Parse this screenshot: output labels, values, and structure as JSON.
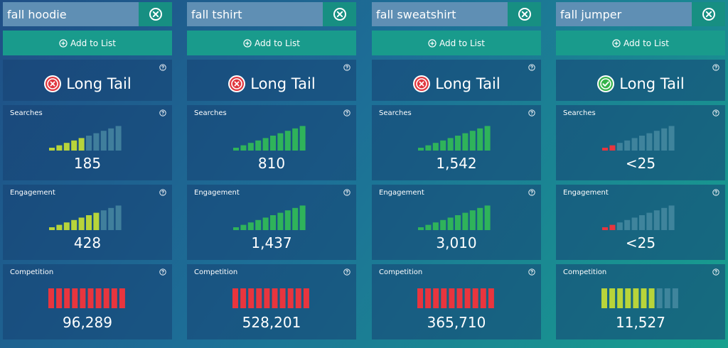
{
  "add_label": "Add to List",
  "labels": {
    "searches": "Searches",
    "engagement": "Engagement",
    "competition": "Competition"
  },
  "colors": {
    "bar_inactive": "#4d8fa6",
    "bar_yellow": "#b8d43a",
    "bar_green": "#2fb35a",
    "bar_red": "#e8353e",
    "status_bad": "#e0363e",
    "status_good": "#35b34a"
  },
  "columns": [
    {
      "keyword": "fall hoodie",
      "status": {
        "text": "Long Tail",
        "icon": "x-circle-icon",
        "ok": false
      },
      "searches": {
        "value": "185",
        "level": 5,
        "total": 10,
        "color": "bar_yellow"
      },
      "engagement": {
        "value": "428",
        "level": 7,
        "total": 10,
        "color": "bar_yellow"
      },
      "competition": {
        "value": "96,289",
        "level": 10,
        "total": 10,
        "color": "bar_red"
      }
    },
    {
      "keyword": "fall tshirt",
      "status": {
        "text": "Long Tail",
        "icon": "x-circle-icon",
        "ok": false
      },
      "searches": {
        "value": "810",
        "level": 10,
        "total": 10,
        "color": "bar_green"
      },
      "engagement": {
        "value": "1,437",
        "level": 10,
        "total": 10,
        "color": "bar_green"
      },
      "competition": {
        "value": "528,201",
        "level": 10,
        "total": 10,
        "color": "bar_red"
      }
    },
    {
      "keyword": "fall sweatshirt",
      "status": {
        "text": "Long Tail",
        "icon": "x-circle-icon",
        "ok": false
      },
      "searches": {
        "value": "1,542",
        "level": 10,
        "total": 10,
        "color": "bar_green"
      },
      "engagement": {
        "value": "3,010",
        "level": 10,
        "total": 10,
        "color": "bar_green"
      },
      "competition": {
        "value": "365,710",
        "level": 10,
        "total": 10,
        "color": "bar_red"
      }
    },
    {
      "keyword": "fall jumper",
      "status": {
        "text": "Long Tail",
        "icon": "check-circle-icon",
        "ok": true
      },
      "searches": {
        "value": "<25",
        "level": 2,
        "total": 10,
        "color": "bar_red"
      },
      "engagement": {
        "value": "<25",
        "level": 2,
        "total": 10,
        "color": "bar_red"
      },
      "competition": {
        "value": "11,527",
        "level": 7,
        "total": 10,
        "color": "bar_yellow"
      }
    }
  ]
}
